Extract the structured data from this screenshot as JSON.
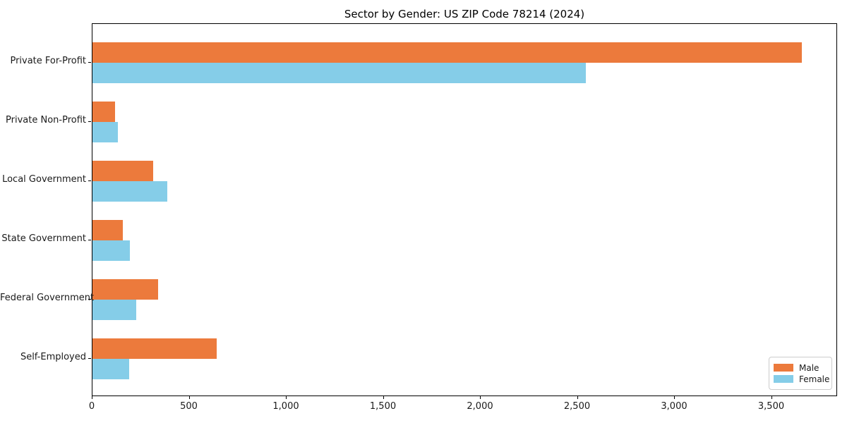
{
  "chart_data": {
    "type": "bar",
    "orientation": "horizontal",
    "title": "Sector by Gender: US ZIP Code 78214 (2024)",
    "categories": [
      "Private For-Profit",
      "Private Non-Profit",
      "Local Government",
      "State Government",
      "Federal Government",
      "Self-Employed"
    ],
    "series": [
      {
        "name": "Male",
        "color": "#ec7a3c",
        "values": [
          3655,
          115,
          312,
          156,
          339,
          640
        ]
      },
      {
        "name": "Female",
        "color": "#85cde8",
        "values": [
          2540,
          130,
          385,
          192,
          224,
          190
        ]
      }
    ],
    "xlabel": "",
    "ylabel": "",
    "xlim": [
      0,
      3840
    ],
    "x_ticks": [
      0,
      500,
      1000,
      1500,
      2000,
      2500,
      3000,
      3500
    ],
    "x_tick_labels": [
      "0",
      "500",
      "1,000",
      "1,500",
      "2,000",
      "2,500",
      "3,000",
      "3,500"
    ],
    "legend_position": "lower right",
    "grid": false,
    "colors": {
      "male": "#ec7a3c",
      "female": "#85cde8",
      "spine": "#000000",
      "background": "#ffffff"
    }
  }
}
